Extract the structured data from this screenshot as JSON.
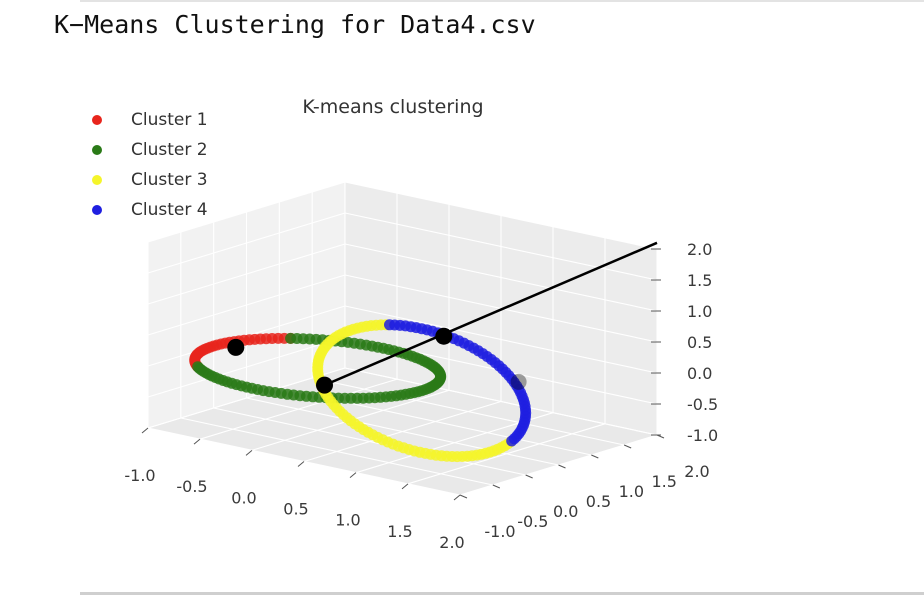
{
  "cell": {
    "heading": "K−Means Clustering for Data4.csv"
  },
  "chart_data": {
    "type": "scatter",
    "projection": "3d",
    "title": "K-means clustering",
    "xlabel": "",
    "ylabel": "",
    "zlabel": "",
    "xlim": [
      -1.0,
      2.0
    ],
    "ylim": [
      -1.0,
      2.0
    ],
    "zlim": [
      -1.0,
      2.0
    ],
    "x_ticks": [
      "-1.0",
      "-0.5",
      "0.0",
      "0.5",
      "1.0",
      "1.5",
      "2.0"
    ],
    "y_ticks": [
      "-1.0",
      "-0.5",
      "0.0",
      "0.5",
      "1.0",
      "1.5",
      "2.0"
    ],
    "z_ticks": [
      "-1.0",
      "-0.5",
      "0.0",
      "0.5",
      "1.0",
      "1.5",
      "2.0"
    ],
    "grid": true,
    "legend_position": "top-left",
    "series": [
      {
        "name": "Cluster 1",
        "color": "#e8251c",
        "ring": "xy",
        "center": [
          0.0,
          0.0,
          0.0
        ],
        "radius": 1.0,
        "theta_start": 135,
        "theta_end": 225
      },
      {
        "name": "Cluster 2",
        "color": "#2a7a17",
        "ring": "xy",
        "center": [
          0.0,
          0.0,
          0.0
        ],
        "radius": 1.0,
        "theta_start": 225,
        "theta_end": 495
      },
      {
        "name": "Cluster 3",
        "color": "#f5f52a",
        "ring": "xz",
        "center": [
          1.0,
          0.0,
          0.0
        ],
        "radius": 1.0,
        "theta_start": 110,
        "theta_end": 330
      },
      {
        "name": "Cluster 4",
        "color": "#1f1fe0",
        "ring": "xz",
        "center": [
          1.0,
          0.0,
          0.0
        ],
        "radius": 1.0,
        "theta_start": -30,
        "theta_end": 110
      }
    ],
    "centroids": {
      "color": "#000000",
      "points": [
        [
          -0.85,
          0.1,
          0.0
        ],
        [
          0.35,
          -0.45,
          0.0
        ],
        [
          1.15,
          0.1,
          0.9
        ],
        [
          1.9,
          0.05,
          0.45
        ]
      ]
    },
    "line": {
      "color": "#000000",
      "from": [
        0.35,
        -0.45,
        0.0
      ],
      "to": [
        2.0,
        2.0,
        2.1
      ]
    }
  }
}
